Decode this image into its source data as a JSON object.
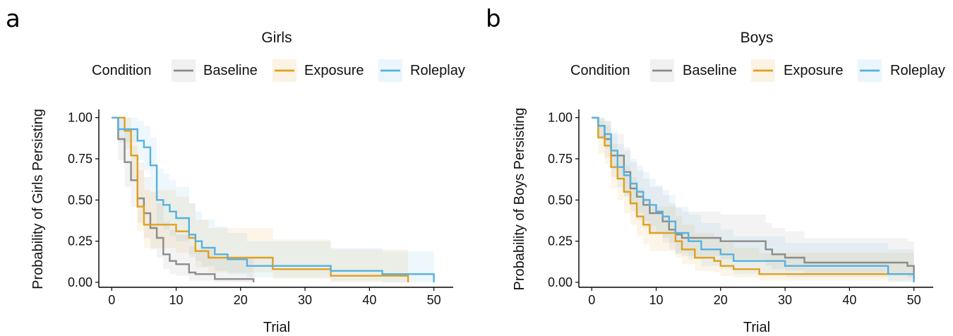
{
  "chart_data": [
    {
      "type": "line",
      "panel": "a",
      "title": "Girls",
      "legend_title": "Condition",
      "xlabel": "Trial",
      "ylabel": "Probability of Girls Persisting",
      "xlim": [
        -2,
        53
      ],
      "ylim": [
        -0.03,
        1.05
      ],
      "xticks": [
        0,
        10,
        20,
        30,
        40,
        50
      ],
      "yticks": [
        0.0,
        0.25,
        0.5,
        0.75,
        1.0
      ],
      "ytick_labels": [
        "0.00",
        "0.25",
        "0.50",
        "0.75",
        "1.00"
      ],
      "xtick_labels": [
        "0",
        "10",
        "20",
        "30",
        "40",
        "50"
      ],
      "legend_position": "top",
      "step": true,
      "series": [
        {
          "name": "Baseline",
          "color": "#8c8c8c",
          "x": [
            0,
            1,
            2,
            3,
            4,
            5,
            6,
            7,
            8,
            9,
            10,
            12,
            13,
            16,
            22
          ],
          "y": [
            1.0,
            0.87,
            0.73,
            0.62,
            0.51,
            0.42,
            0.33,
            0.27,
            0.17,
            0.13,
            0.11,
            0.06,
            0.05,
            0.02,
            0.0
          ],
          "lower": [
            1.0,
            0.74,
            0.58,
            0.46,
            0.36,
            0.27,
            0.2,
            0.15,
            0.08,
            0.05,
            0.04,
            0.01,
            0.01,
            0.0,
            0.0
          ],
          "upper": [
            1.0,
            1.0,
            0.92,
            0.83,
            0.73,
            0.64,
            0.55,
            0.48,
            0.37,
            0.32,
            0.29,
            0.22,
            0.2,
            0.15,
            0.15
          ]
        },
        {
          "name": "Exposure",
          "color": "#e0a020",
          "x": [
            0,
            2,
            3,
            4,
            5,
            8,
            10,
            12,
            13,
            15,
            25,
            34,
            46
          ],
          "y": [
            1.0,
            0.92,
            0.77,
            0.46,
            0.35,
            0.35,
            0.31,
            0.27,
            0.19,
            0.15,
            0.08,
            0.04,
            0.0
          ],
          "lower": [
            1.0,
            0.81,
            0.62,
            0.31,
            0.21,
            0.21,
            0.18,
            0.15,
            0.09,
            0.06,
            0.02,
            0.0,
            0.0
          ],
          "upper": [
            1.0,
            1.0,
            0.93,
            0.68,
            0.56,
            0.56,
            0.52,
            0.48,
            0.38,
            0.33,
            0.26,
            0.2,
            0.2
          ]
        },
        {
          "name": "Roleplay",
          "color": "#56b1e0",
          "x": [
            0,
            1,
            3,
            4,
            5,
            6,
            7,
            8,
            9,
            10,
            12,
            13,
            14,
            16,
            18,
            21,
            34,
            42,
            50
          ],
          "y": [
            1.0,
            0.93,
            0.93,
            0.86,
            0.82,
            0.71,
            0.5,
            0.47,
            0.43,
            0.39,
            0.29,
            0.25,
            0.21,
            0.17,
            0.14,
            0.1,
            0.07,
            0.05,
            0.0
          ],
          "lower": [
            1.0,
            0.85,
            0.85,
            0.74,
            0.68,
            0.56,
            0.35,
            0.32,
            0.28,
            0.25,
            0.17,
            0.13,
            0.1,
            0.07,
            0.05,
            0.03,
            0.01,
            0.0,
            0.0
          ],
          "upper": [
            1.0,
            1.0,
            1.0,
            0.98,
            0.95,
            0.88,
            0.69,
            0.66,
            0.62,
            0.58,
            0.48,
            0.43,
            0.38,
            0.34,
            0.3,
            0.25,
            0.21,
            0.19,
            0.19
          ]
        }
      ]
    },
    {
      "type": "line",
      "panel": "b",
      "title": "Boys",
      "legend_title": "Condition",
      "xlabel": "Trial",
      "ylabel": "Probability of Boys Persisting",
      "xlim": [
        -2,
        53
      ],
      "ylim": [
        -0.03,
        1.05
      ],
      "xticks": [
        0,
        10,
        20,
        30,
        40,
        50
      ],
      "yticks": [
        0.0,
        0.25,
        0.5,
        0.75,
        1.0
      ],
      "ytick_labels": [
        "0.00",
        "0.25",
        "0.50",
        "0.75",
        "1.00"
      ],
      "xtick_labels": [
        "0",
        "10",
        "20",
        "30",
        "40",
        "50"
      ],
      "legend_position": "top",
      "step": true,
      "series": [
        {
          "name": "Baseline",
          "color": "#8c8c8c",
          "x": [
            0,
            1,
            2,
            3,
            5,
            6,
            7,
            8,
            9,
            11,
            12,
            13,
            14,
            16,
            20,
            27,
            28,
            30,
            33,
            49,
            50
          ],
          "y": [
            1.0,
            0.95,
            0.87,
            0.77,
            0.67,
            0.57,
            0.52,
            0.47,
            0.42,
            0.37,
            0.32,
            0.29,
            0.27,
            0.27,
            0.25,
            0.2,
            0.17,
            0.15,
            0.12,
            0.1,
            0.05
          ],
          "lower": [
            1.0,
            0.87,
            0.76,
            0.64,
            0.53,
            0.43,
            0.38,
            0.33,
            0.29,
            0.24,
            0.2,
            0.17,
            0.16,
            0.16,
            0.14,
            0.1,
            0.08,
            0.07,
            0.05,
            0.03,
            0.0
          ],
          "upper": [
            1.0,
            1.0,
            0.98,
            0.9,
            0.82,
            0.73,
            0.68,
            0.63,
            0.58,
            0.53,
            0.48,
            0.45,
            0.43,
            0.43,
            0.41,
            0.36,
            0.33,
            0.31,
            0.27,
            0.25,
            0.2
          ]
        },
        {
          "name": "Exposure",
          "color": "#e0a020",
          "x": [
            0,
            1,
            2,
            3,
            4,
            5,
            6,
            7,
            8,
            9,
            13,
            14,
            16,
            19,
            20,
            22,
            26,
            50
          ],
          "y": [
            1.0,
            0.88,
            0.83,
            0.7,
            0.63,
            0.55,
            0.48,
            0.4,
            0.35,
            0.3,
            0.25,
            0.2,
            0.15,
            0.13,
            0.1,
            0.08,
            0.05,
            0.02
          ],
          "lower": [
            1.0,
            0.78,
            0.72,
            0.57,
            0.5,
            0.42,
            0.35,
            0.28,
            0.23,
            0.19,
            0.15,
            0.11,
            0.07,
            0.06,
            0.04,
            0.03,
            0.01,
            0.0
          ],
          "upper": [
            1.0,
            0.98,
            0.95,
            0.84,
            0.78,
            0.71,
            0.64,
            0.57,
            0.51,
            0.46,
            0.4,
            0.35,
            0.3,
            0.27,
            0.24,
            0.21,
            0.18,
            0.15
          ]
        },
        {
          "name": "Roleplay",
          "color": "#56b1e0",
          "x": [
            0,
            1,
            2,
            3,
            4,
            5,
            6,
            7,
            8,
            9,
            10,
            11,
            12,
            13,
            15,
            17,
            20,
            22,
            30,
            46,
            50
          ],
          "y": [
            1.0,
            0.95,
            0.9,
            0.8,
            0.7,
            0.65,
            0.6,
            0.55,
            0.5,
            0.47,
            0.43,
            0.4,
            0.37,
            0.3,
            0.25,
            0.2,
            0.17,
            0.13,
            0.1,
            0.05,
            0.0
          ],
          "lower": [
            1.0,
            0.88,
            0.82,
            0.69,
            0.58,
            0.52,
            0.47,
            0.42,
            0.37,
            0.34,
            0.3,
            0.27,
            0.24,
            0.18,
            0.14,
            0.1,
            0.08,
            0.05,
            0.03,
            0.0,
            0.0
          ],
          "upper": [
            1.0,
            1.0,
            0.98,
            0.92,
            0.84,
            0.8,
            0.75,
            0.71,
            0.67,
            0.63,
            0.59,
            0.56,
            0.53,
            0.46,
            0.41,
            0.36,
            0.32,
            0.28,
            0.24,
            0.2,
            0.18
          ]
        }
      ]
    }
  ]
}
